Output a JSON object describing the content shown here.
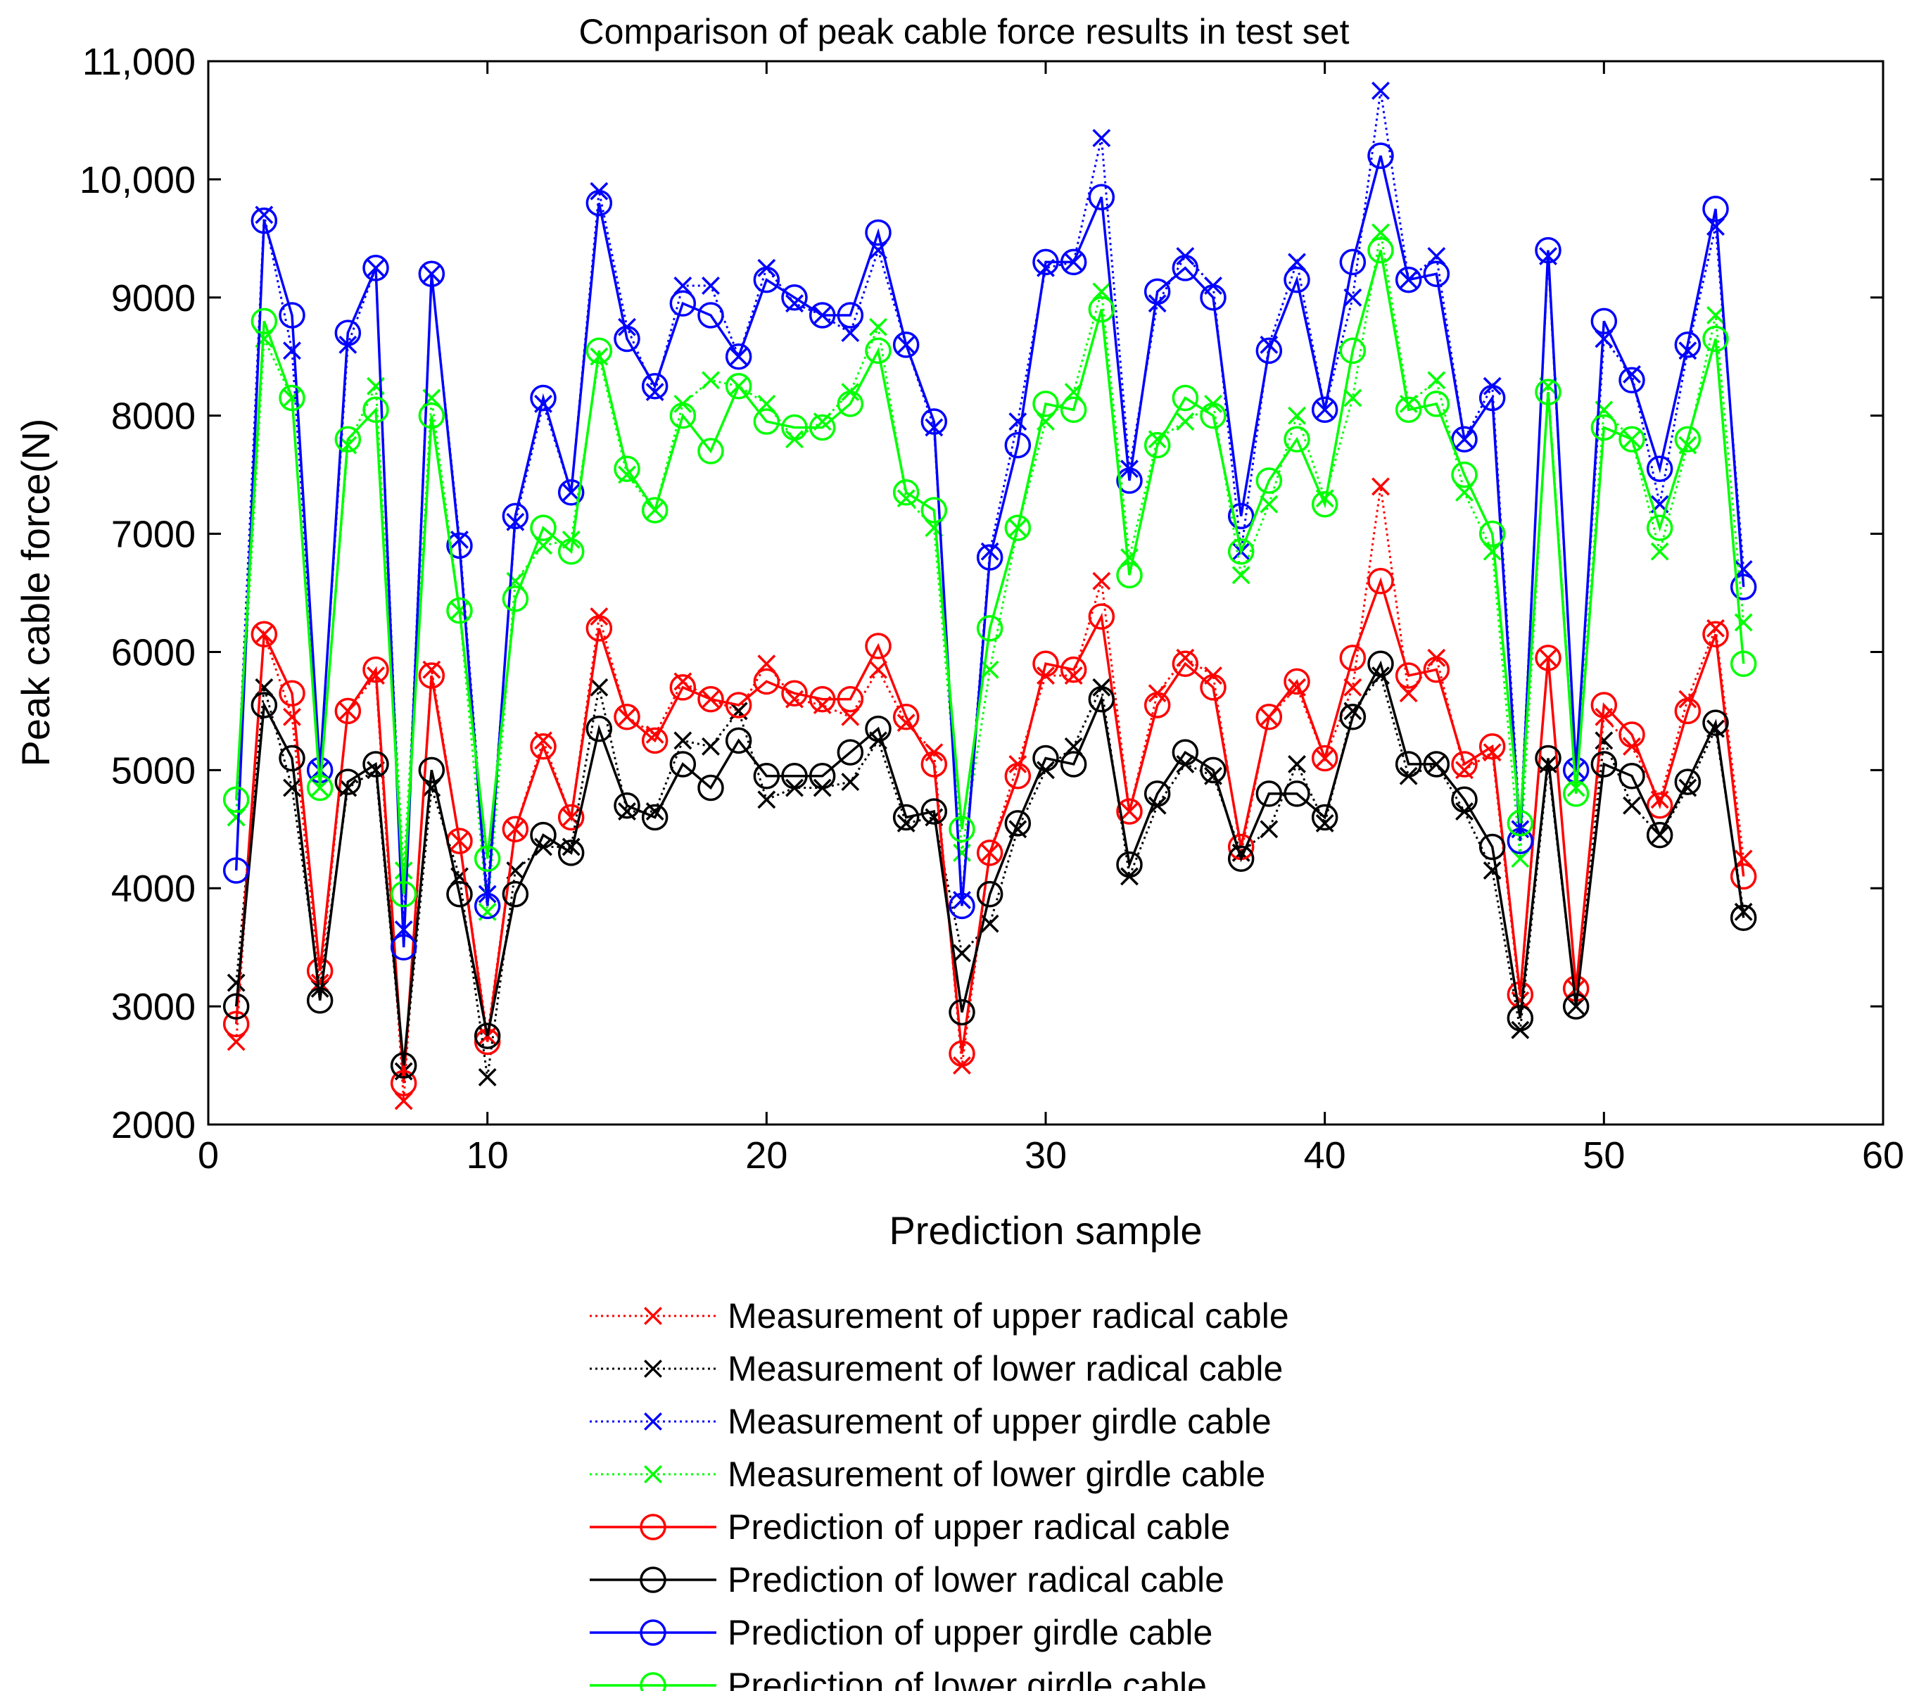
{
  "chart_data": {
    "type": "line",
    "title": "Comparison of peak cable force results in test set",
    "xlabel": "Prediction sample",
    "ylabel": "Peak cable force(N)",
    "xlim": [
      0,
      60
    ],
    "ylim": [
      2000,
      11000
    ],
    "xticks": [
      0,
      10,
      20,
      30,
      40,
      50,
      60
    ],
    "xtick_labels": [
      "0",
      "10",
      "20",
      "30",
      "40",
      "50",
      "60"
    ],
    "yticks": [
      2000,
      3000,
      4000,
      5000,
      6000,
      7000,
      8000,
      9000,
      10000,
      11000
    ],
    "ytick_labels": [
      "2000",
      "3000",
      "4000",
      "5000",
      "6000",
      "7000",
      "8000",
      "9000",
      "10,000",
      "11,000"
    ],
    "legend_position": "below",
    "x": [
      1,
      2,
      3,
      4,
      5,
      6,
      7,
      8,
      9,
      10,
      11,
      12,
      13,
      14,
      15,
      16,
      17,
      18,
      19,
      20,
      21,
      22,
      23,
      24,
      25,
      26,
      27,
      28,
      29,
      30,
      31,
      32,
      33,
      34,
      35,
      36,
      37,
      38,
      39,
      40,
      41,
      42,
      43,
      44,
      45,
      46,
      47,
      48,
      49,
      50,
      51,
      52,
      53,
      54,
      55
    ],
    "series": [
      {
        "name": "Measurement of upper radical cable",
        "kind": "measurement",
        "color": "#ff0000",
        "marker": "x",
        "line": "dotted",
        "values": [
          2700,
          6150,
          5450,
          3200,
          5500,
          5800,
          2200,
          5850,
          4400,
          2750,
          4500,
          5250,
          4600,
          6300,
          5450,
          5300,
          5750,
          5600,
          5500,
          5900,
          5600,
          5550,
          5450,
          5850,
          5400,
          5150,
          2500,
          4300,
          5050,
          5800,
          5800,
          6600,
          4650,
          5650,
          5950,
          5800,
          4300,
          5450,
          5700,
          5100,
          5700,
          7400,
          5650,
          5950,
          5000,
          5150,
          3050,
          5950,
          3150,
          5450,
          5200,
          4750,
          5600,
          6200,
          4250
        ]
      },
      {
        "name": "Measurement of lower radical cable",
        "kind": "measurement",
        "color": "#000000",
        "marker": "x",
        "line": "dotted",
        "values": [
          3200,
          5700,
          4850,
          3150,
          4850,
          5000,
          2450,
          4850,
          4100,
          2400,
          4150,
          4350,
          4350,
          5700,
          4650,
          4650,
          5250,
          5200,
          5500,
          4750,
          4850,
          4850,
          4900,
          5250,
          4550,
          4600,
          3450,
          3700,
          4500,
          5000,
          5200,
          5700,
          4100,
          4700,
          5050,
          4950,
          4300,
          4500,
          5050,
          4550,
          5500,
          5800,
          4950,
          5050,
          4650,
          4150,
          2800,
          5050,
          3000,
          5250,
          4700,
          4450,
          4850,
          5350,
          3800
        ]
      },
      {
        "name": "Measurement of upper girdle cable",
        "kind": "measurement",
        "color": "#0000ff",
        "marker": "x",
        "line": "dotted",
        "values": [
          4600,
          9700,
          8550,
          5000,
          8600,
          9250,
          3650,
          9200,
          6950,
          3950,
          7100,
          8100,
          7350,
          9900,
          8750,
          8200,
          9100,
          9100,
          8500,
          9250,
          8950,
          8850,
          8700,
          9400,
          8600,
          7900,
          3900,
          6850,
          7950,
          9250,
          9300,
          10350,
          7550,
          8950,
          9350,
          9100,
          6850,
          8600,
          9300,
          8050,
          9000,
          10750,
          9150,
          9350,
          7800,
          8250,
          4500,
          9350,
          5000,
          8650,
          8350,
          7250,
          8550,
          9600,
          6700
        ]
      },
      {
        "name": "Measurement of lower girdle cable",
        "kind": "measurement",
        "color": "#00ff00",
        "marker": "x",
        "line": "dotted",
        "values": [
          4600,
          8650,
          8150,
          4850,
          7750,
          8250,
          4150,
          8150,
          6350,
          3800,
          6600,
          6900,
          6950,
          8500,
          7500,
          7200,
          8100,
          8300,
          8250,
          8100,
          7800,
          7950,
          8200,
          8750,
          7300,
          7050,
          4300,
          5850,
          7050,
          7950,
          8200,
          9050,
          6800,
          7800,
          7950,
          8100,
          6650,
          7250,
          8000,
          7300,
          8150,
          9550,
          8100,
          8300,
          7350,
          6850,
          4250,
          8250,
          4850,
          8050,
          7800,
          6850,
          7750,
          8850,
          6250
        ]
      },
      {
        "name": "Prediction of upper radical cable",
        "kind": "prediction",
        "color": "#ff0000",
        "marker": "o",
        "line": "solid",
        "values": [
          2850,
          6150,
          5650,
          3300,
          5500,
          5850,
          2350,
          5800,
          4400,
          2700,
          4500,
          5200,
          4600,
          6200,
          5450,
          5250,
          5700,
          5600,
          5550,
          5750,
          5650,
          5600,
          5600,
          6050,
          5450,
          5050,
          2600,
          4300,
          4950,
          5900,
          5850,
          6300,
          4650,
          5550,
          5900,
          5700,
          4350,
          5450,
          5750,
          5100,
          5950,
          6600,
          5800,
          5850,
          5050,
          5200,
          3100,
          5950,
          3150,
          5550,
          5300,
          4700,
          5500,
          6150,
          4100
        ]
      },
      {
        "name": "Prediction of lower radical cable",
        "kind": "prediction",
        "color": "#000000",
        "marker": "o",
        "line": "solid",
        "values": [
          3000,
          5550,
          5100,
          3050,
          4900,
          5050,
          2500,
          5000,
          3950,
          2750,
          3950,
          4450,
          4300,
          5350,
          4700,
          4600,
          5050,
          4850,
          5250,
          4950,
          4950,
          4950,
          5150,
          5350,
          4600,
          4650,
          2950,
          3950,
          4550,
          5100,
          5050,
          5600,
          4200,
          4800,
          5150,
          5000,
          4250,
          4800,
          4800,
          4600,
          5450,
          5900,
          5050,
          5050,
          4750,
          4350,
          2900,
          5100,
          3000,
          5050,
          4950,
          4450,
          4900,
          5400,
          3750
        ]
      },
      {
        "name": "Prediction of upper girdle cable",
        "kind": "prediction",
        "color": "#0000ff",
        "marker": "o",
        "line": "solid",
        "values": [
          4150,
          9650,
          8850,
          5000,
          8700,
          9250,
          3500,
          9200,
          6900,
          3850,
          7150,
          8150,
          7350,
          9800,
          8650,
          8250,
          8950,
          8850,
          8500,
          9150,
          9000,
          8850,
          8850,
          9550,
          8600,
          7950,
          3850,
          6800,
          7750,
          9300,
          9300,
          9850,
          7450,
          9050,
          9250,
          9000,
          7150,
          8550,
          9150,
          8050,
          9300,
          10200,
          9150,
          9200,
          7800,
          8150,
          4400,
          9400,
          5000,
          8800,
          8300,
          7550,
          8600,
          9750,
          6550
        ]
      },
      {
        "name": "Prediction of lower girdle cable",
        "kind": "prediction",
        "color": "#00ff00",
        "marker": "o",
        "line": "solid",
        "values": [
          4750,
          8800,
          8150,
          4850,
          7800,
          8050,
          3950,
          8000,
          6350,
          4250,
          6450,
          7050,
          6850,
          8550,
          7550,
          7200,
          8000,
          7700,
          8250,
          7950,
          7900,
          7900,
          8100,
          8550,
          7350,
          7200,
          4500,
          6200,
          7050,
          8100,
          8050,
          8900,
          6650,
          7750,
          8150,
          8000,
          6850,
          7450,
          7800,
          7250,
          8550,
          9400,
          8050,
          8100,
          7500,
          7000,
          4550,
          8200,
          4800,
          7900,
          7800,
          7050,
          7800,
          8650,
          5900
        ]
      }
    ]
  }
}
